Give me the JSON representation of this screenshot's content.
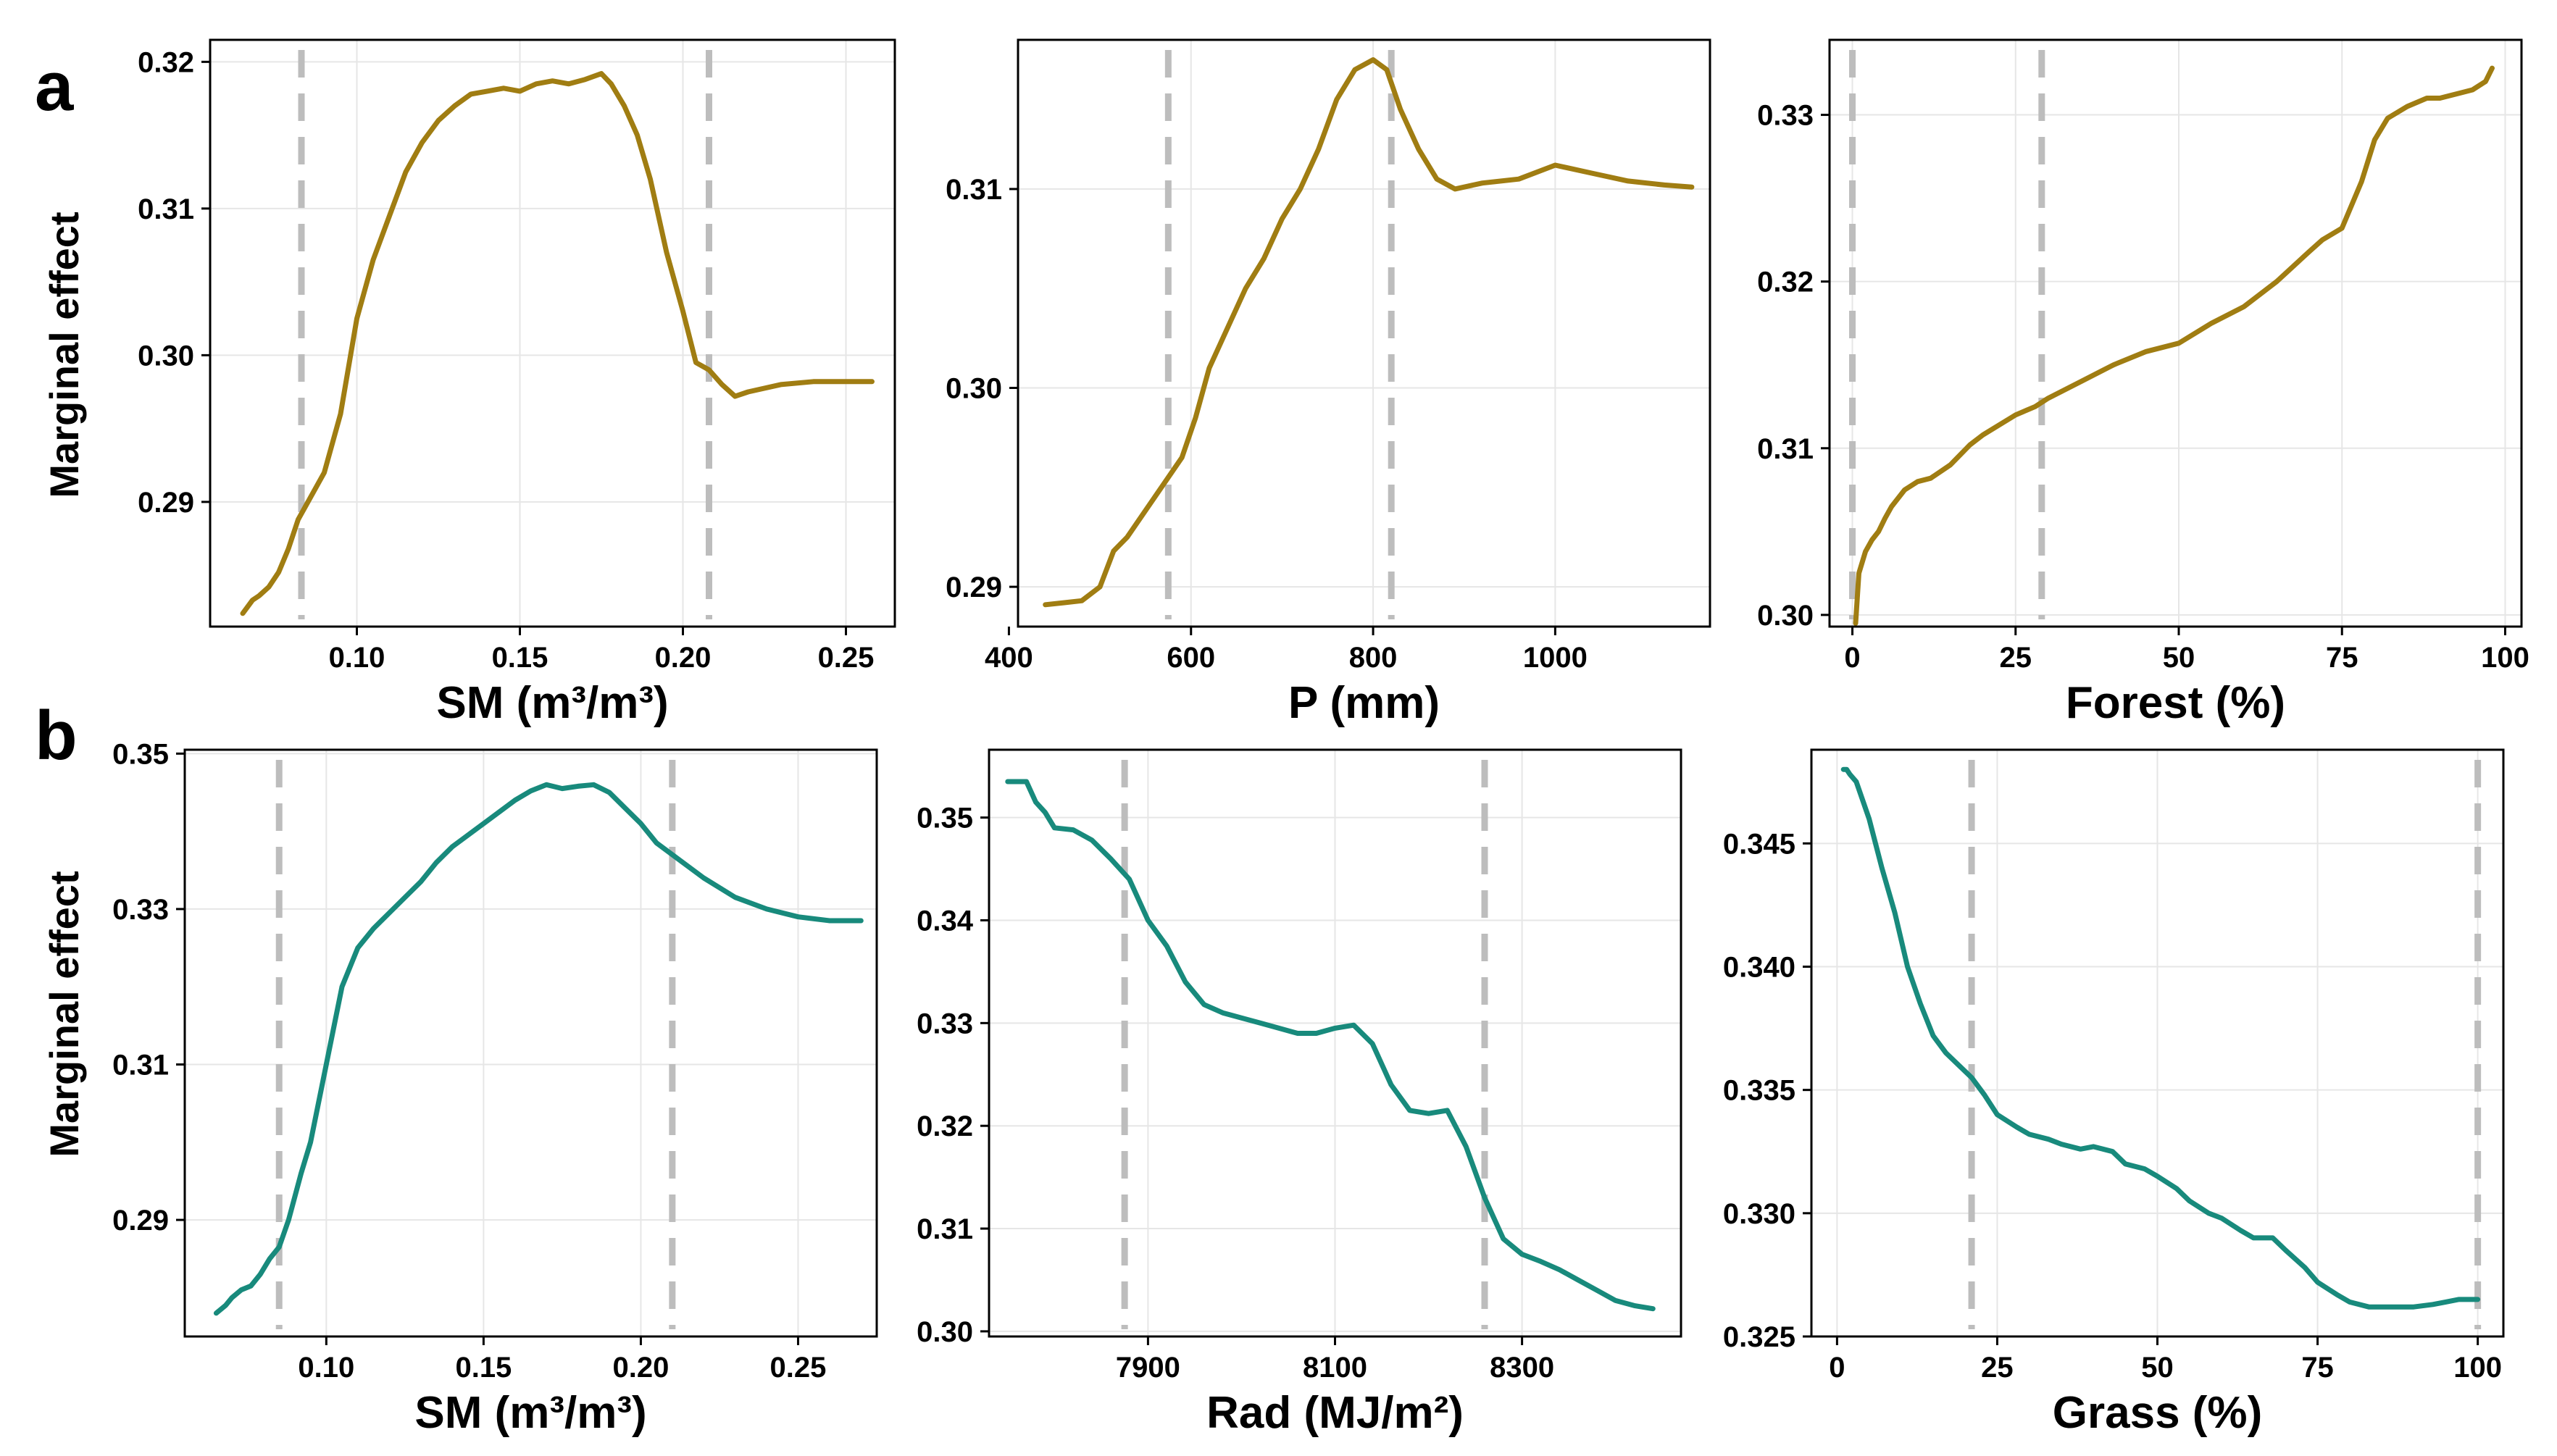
{
  "figure": {
    "colors": {
      "row_a_line": "#A07D12",
      "row_b_line": "#188A7C",
      "threshold_line": "#BDBDBD",
      "grid": "#E6E6E6",
      "axis": "#000000"
    },
    "panel_labels": [
      "a",
      "b"
    ],
    "shared_ylabel": "Marginal effect"
  },
  "chart_data": [
    {
      "type": "line",
      "row": "a",
      "xlabel": "SM (m³/m³)",
      "ylabel": "Marginal effect",
      "xlim": [
        0.055,
        0.265
      ],
      "ylim": [
        0.2815,
        0.3215
      ],
      "xticks": [
        0.1,
        0.15,
        0.2,
        0.25
      ],
      "xtick_labels": [
        "0.10",
        "0.15",
        "0.20",
        "0.25"
      ],
      "yticks": [
        0.29,
        0.3,
        0.31,
        0.32
      ],
      "ytick_labels": [
        "0.29",
        "0.30",
        "0.31",
        "0.32"
      ],
      "thresholds": [
        0.083,
        0.208
      ],
      "x": [
        0.065,
        0.068,
        0.07,
        0.073,
        0.076,
        0.079,
        0.082,
        0.085,
        0.09,
        0.095,
        0.1,
        0.105,
        0.11,
        0.115,
        0.12,
        0.125,
        0.13,
        0.135,
        0.14,
        0.145,
        0.15,
        0.155,
        0.16,
        0.165,
        0.17,
        0.175,
        0.178,
        0.182,
        0.186,
        0.19,
        0.195,
        0.2,
        0.204,
        0.208,
        0.212,
        0.216,
        0.22,
        0.23,
        0.24,
        0.25,
        0.258
      ],
      "y": [
        0.2824,
        0.2833,
        0.2836,
        0.2842,
        0.2852,
        0.2868,
        0.2888,
        0.29,
        0.292,
        0.296,
        0.3025,
        0.3065,
        0.3095,
        0.3125,
        0.3145,
        0.316,
        0.317,
        0.3178,
        0.318,
        0.3182,
        0.318,
        0.3185,
        0.3187,
        0.3185,
        0.3188,
        0.3192,
        0.3185,
        0.317,
        0.315,
        0.312,
        0.307,
        0.303,
        0.2995,
        0.299,
        0.298,
        0.2972,
        0.2975,
        0.298,
        0.2982,
        0.2982,
        0.2982
      ]
    },
    {
      "type": "line",
      "row": "a",
      "xlabel": "P (mm)",
      "ylabel": "",
      "xlim": [
        410,
        1170
      ],
      "ylim": [
        0.288,
        0.3175
      ],
      "xticks": [
        400,
        600,
        800,
        1000
      ],
      "xtick_labels": [
        "400",
        "600",
        "800",
        "1000"
      ],
      "yticks": [
        0.29,
        0.3,
        0.31
      ],
      "ytick_labels": [
        "0.29",
        "0.30",
        "0.31"
      ],
      "thresholds": [
        575,
        820
      ],
      "x": [
        440,
        460,
        480,
        500,
        515,
        530,
        545,
        560,
        575,
        590,
        605,
        620,
        640,
        660,
        680,
        700,
        720,
        740,
        760,
        780,
        800,
        815,
        830,
        850,
        870,
        890,
        920,
        960,
        1000,
        1040,
        1080,
        1120,
        1150
      ],
      "y": [
        0.2891,
        0.2892,
        0.2893,
        0.29,
        0.2918,
        0.2925,
        0.2935,
        0.2945,
        0.2955,
        0.2965,
        0.2985,
        0.301,
        0.303,
        0.305,
        0.3065,
        0.3085,
        0.31,
        0.312,
        0.3145,
        0.316,
        0.3165,
        0.316,
        0.314,
        0.312,
        0.3105,
        0.31,
        0.3103,
        0.3105,
        0.3112,
        0.3108,
        0.3104,
        0.3102,
        0.3101
      ]
    },
    {
      "type": "line",
      "row": "a",
      "xlabel": "Forest (%)",
      "ylabel": "",
      "xlim": [
        -3.5,
        102.5
      ],
      "ylim": [
        0.2993,
        0.3345
      ],
      "xticks": [
        0,
        25,
        50,
        75,
        100
      ],
      "xtick_labels": [
        "0",
        "25",
        "50",
        "75",
        "100"
      ],
      "yticks": [
        0.3,
        0.31,
        0.32,
        0.33
      ],
      "ytick_labels": [
        "0.30",
        "0.31",
        "0.32",
        "0.33"
      ],
      "thresholds": [
        0,
        29
      ],
      "x": [
        0.5,
        1,
        2,
        3,
        4,
        5,
        6,
        8,
        10,
        12,
        15,
        18,
        20,
        25,
        28,
        30,
        35,
        40,
        45,
        50,
        55,
        60,
        65,
        70,
        72,
        75,
        78,
        80,
        82,
        85,
        88,
        90,
        93,
        95,
        97,
        98
      ],
      "y": [
        0.2995,
        0.3025,
        0.3038,
        0.3045,
        0.305,
        0.3058,
        0.3065,
        0.3075,
        0.308,
        0.3082,
        0.309,
        0.3102,
        0.3108,
        0.312,
        0.3125,
        0.313,
        0.314,
        0.315,
        0.3158,
        0.3163,
        0.3175,
        0.3185,
        0.32,
        0.3218,
        0.3225,
        0.3232,
        0.326,
        0.3285,
        0.3298,
        0.3305,
        0.331,
        0.331,
        0.3313,
        0.3315,
        0.332,
        0.3328
      ]
    },
    {
      "type": "line",
      "row": "b",
      "xlabel": "SM (m³/m³)",
      "ylabel": "Marginal effect",
      "xlim": [
        0.055,
        0.275
      ],
      "ylim": [
        0.275,
        0.3505
      ],
      "xticks": [
        0.1,
        0.15,
        0.2,
        0.25
      ],
      "xtick_labels": [
        "0.10",
        "0.15",
        "0.20",
        "0.25"
      ],
      "yticks": [
        0.29,
        0.31,
        0.33,
        0.35
      ],
      "ytick_labels": [
        "0.29",
        "0.31",
        "0.33",
        "0.35"
      ],
      "thresholds": [
        0.085,
        0.21
      ],
      "x": [
        0.065,
        0.068,
        0.07,
        0.073,
        0.076,
        0.079,
        0.082,
        0.085,
        0.088,
        0.092,
        0.095,
        0.1,
        0.105,
        0.11,
        0.115,
        0.12,
        0.125,
        0.13,
        0.135,
        0.14,
        0.15,
        0.16,
        0.165,
        0.17,
        0.175,
        0.18,
        0.185,
        0.19,
        0.195,
        0.2,
        0.205,
        0.21,
        0.22,
        0.23,
        0.24,
        0.25,
        0.26,
        0.27
      ],
      "y": [
        0.278,
        0.279,
        0.28,
        0.281,
        0.2815,
        0.283,
        0.285,
        0.2865,
        0.29,
        0.296,
        0.3,
        0.31,
        0.32,
        0.325,
        0.3275,
        0.3295,
        0.3315,
        0.3335,
        0.336,
        0.338,
        0.341,
        0.344,
        0.3452,
        0.346,
        0.3455,
        0.3458,
        0.346,
        0.345,
        0.343,
        0.341,
        0.3385,
        0.337,
        0.334,
        0.3315,
        0.33,
        0.329,
        0.3285,
        0.3285
      ]
    },
    {
      "type": "line",
      "row": "b",
      "xlabel": "Rad (MJ/m²)",
      "ylabel": "",
      "xlim": [
        7730,
        8470
      ],
      "ylim": [
        0.2995,
        0.3566
      ],
      "xticks": [
        7900,
        8100,
        8300
      ],
      "xtick_labels": [
        "7900",
        "8100",
        "8300"
      ],
      "yticks": [
        0.3,
        0.31,
        0.32,
        0.33,
        0.34,
        0.35
      ],
      "ytick_labels": [
        "0.30",
        "0.31",
        "0.32",
        "0.33",
        "0.34",
        "0.35"
      ],
      "thresholds": [
        7875,
        8260
      ],
      "x": [
        7750,
        7760,
        7770,
        7780,
        7790,
        7800,
        7820,
        7840,
        7860,
        7880,
        7900,
        7920,
        7940,
        7960,
        7980,
        8000,
        8020,
        8040,
        8060,
        8080,
        8100,
        8120,
        8140,
        8160,
        8180,
        8200,
        8220,
        8240,
        8260,
        8280,
        8300,
        8320,
        8340,
        8360,
        8380,
        8400,
        8420,
        8440
      ],
      "y": [
        0.3535,
        0.3535,
        0.3535,
        0.3515,
        0.3505,
        0.349,
        0.3488,
        0.3478,
        0.346,
        0.344,
        0.34,
        0.3375,
        0.334,
        0.3318,
        0.331,
        0.3305,
        0.33,
        0.3295,
        0.329,
        0.329,
        0.3295,
        0.3298,
        0.328,
        0.324,
        0.3215,
        0.3212,
        0.3215,
        0.318,
        0.313,
        0.309,
        0.3075,
        0.3068,
        0.306,
        0.305,
        0.304,
        0.303,
        0.3025,
        0.3022
      ]
    },
    {
      "type": "line",
      "row": "b",
      "xlabel": "Grass (%)",
      "ylabel": "",
      "xlim": [
        -4,
        104
      ],
      "ylim": [
        0.325,
        0.3488
      ],
      "xticks": [
        0,
        25,
        50,
        75,
        100
      ],
      "xtick_labels": [
        "0",
        "25",
        "50",
        "75",
        "100"
      ],
      "yticks": [
        0.325,
        0.33,
        0.335,
        0.34,
        0.345
      ],
      "ytick_labels": [
        "0.325",
        "0.330",
        "0.335",
        "0.340",
        "0.345"
      ],
      "thresholds": [
        21,
        100
      ],
      "x": [
        1,
        1.5,
        2,
        3,
        5,
        7,
        9,
        11,
        13,
        15,
        17,
        19,
        21,
        23,
        25,
        28,
        30,
        33,
        35,
        38,
        40,
        43,
        45,
        48,
        50,
        53,
        55,
        58,
        60,
        63,
        65,
        68,
        70,
        73,
        75,
        78,
        80,
        83,
        85,
        88,
        90,
        93,
        95,
        97,
        99,
        100
      ],
      "y": [
        0.348,
        0.348,
        0.3478,
        0.3475,
        0.346,
        0.344,
        0.3422,
        0.34,
        0.3385,
        0.3372,
        0.3365,
        0.336,
        0.3355,
        0.3348,
        0.334,
        0.3335,
        0.3332,
        0.333,
        0.3328,
        0.3326,
        0.3327,
        0.3325,
        0.332,
        0.3318,
        0.3315,
        0.331,
        0.3305,
        0.33,
        0.3298,
        0.3293,
        0.329,
        0.329,
        0.3285,
        0.3278,
        0.3272,
        0.3267,
        0.3264,
        0.3262,
        0.3262,
        0.3262,
        0.3262,
        0.3263,
        0.3264,
        0.3265,
        0.3265,
        0.3265
      ]
    }
  ]
}
